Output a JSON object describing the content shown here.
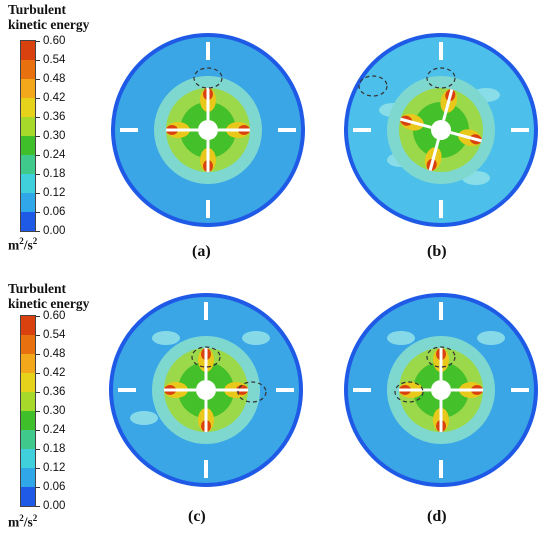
{
  "legends": [
    {
      "title_line1": "Turbulent",
      "title_line2": "kinetic energy",
      "unit_base": "m",
      "unit_exp_num": "2",
      "unit_sep": "/s",
      "unit_exp_den": "2",
      "ticks": [
        "0.60",
        "0.54",
        "0.48",
        "0.42",
        "0.36",
        "0.30",
        "0.24",
        "0.18",
        "0.12",
        "0.06",
        "0.00"
      ]
    },
    {
      "title_line1": "Turbulent",
      "title_line2": "kinetic energy",
      "unit_base": "m",
      "unit_exp_num": "2",
      "unit_sep": "/s",
      "unit_exp_den": "2",
      "ticks": [
        "0.60",
        "0.54",
        "0.48",
        "0.42",
        "0.36",
        "0.30",
        "0.24",
        "0.18",
        "0.12",
        "0.06",
        "0.00"
      ]
    }
  ],
  "colorbar_colors": [
    "#d9410f",
    "#e8700f",
    "#f2a81a",
    "#e6d21a",
    "#a6d92a",
    "#3fbf2a",
    "#3fc98a",
    "#3fd0dc",
    "#2fa7e8",
    "#1f5ae6"
  ],
  "panels": [
    "(a)",
    "(b)",
    "(c)",
    "(d)"
  ]
}
